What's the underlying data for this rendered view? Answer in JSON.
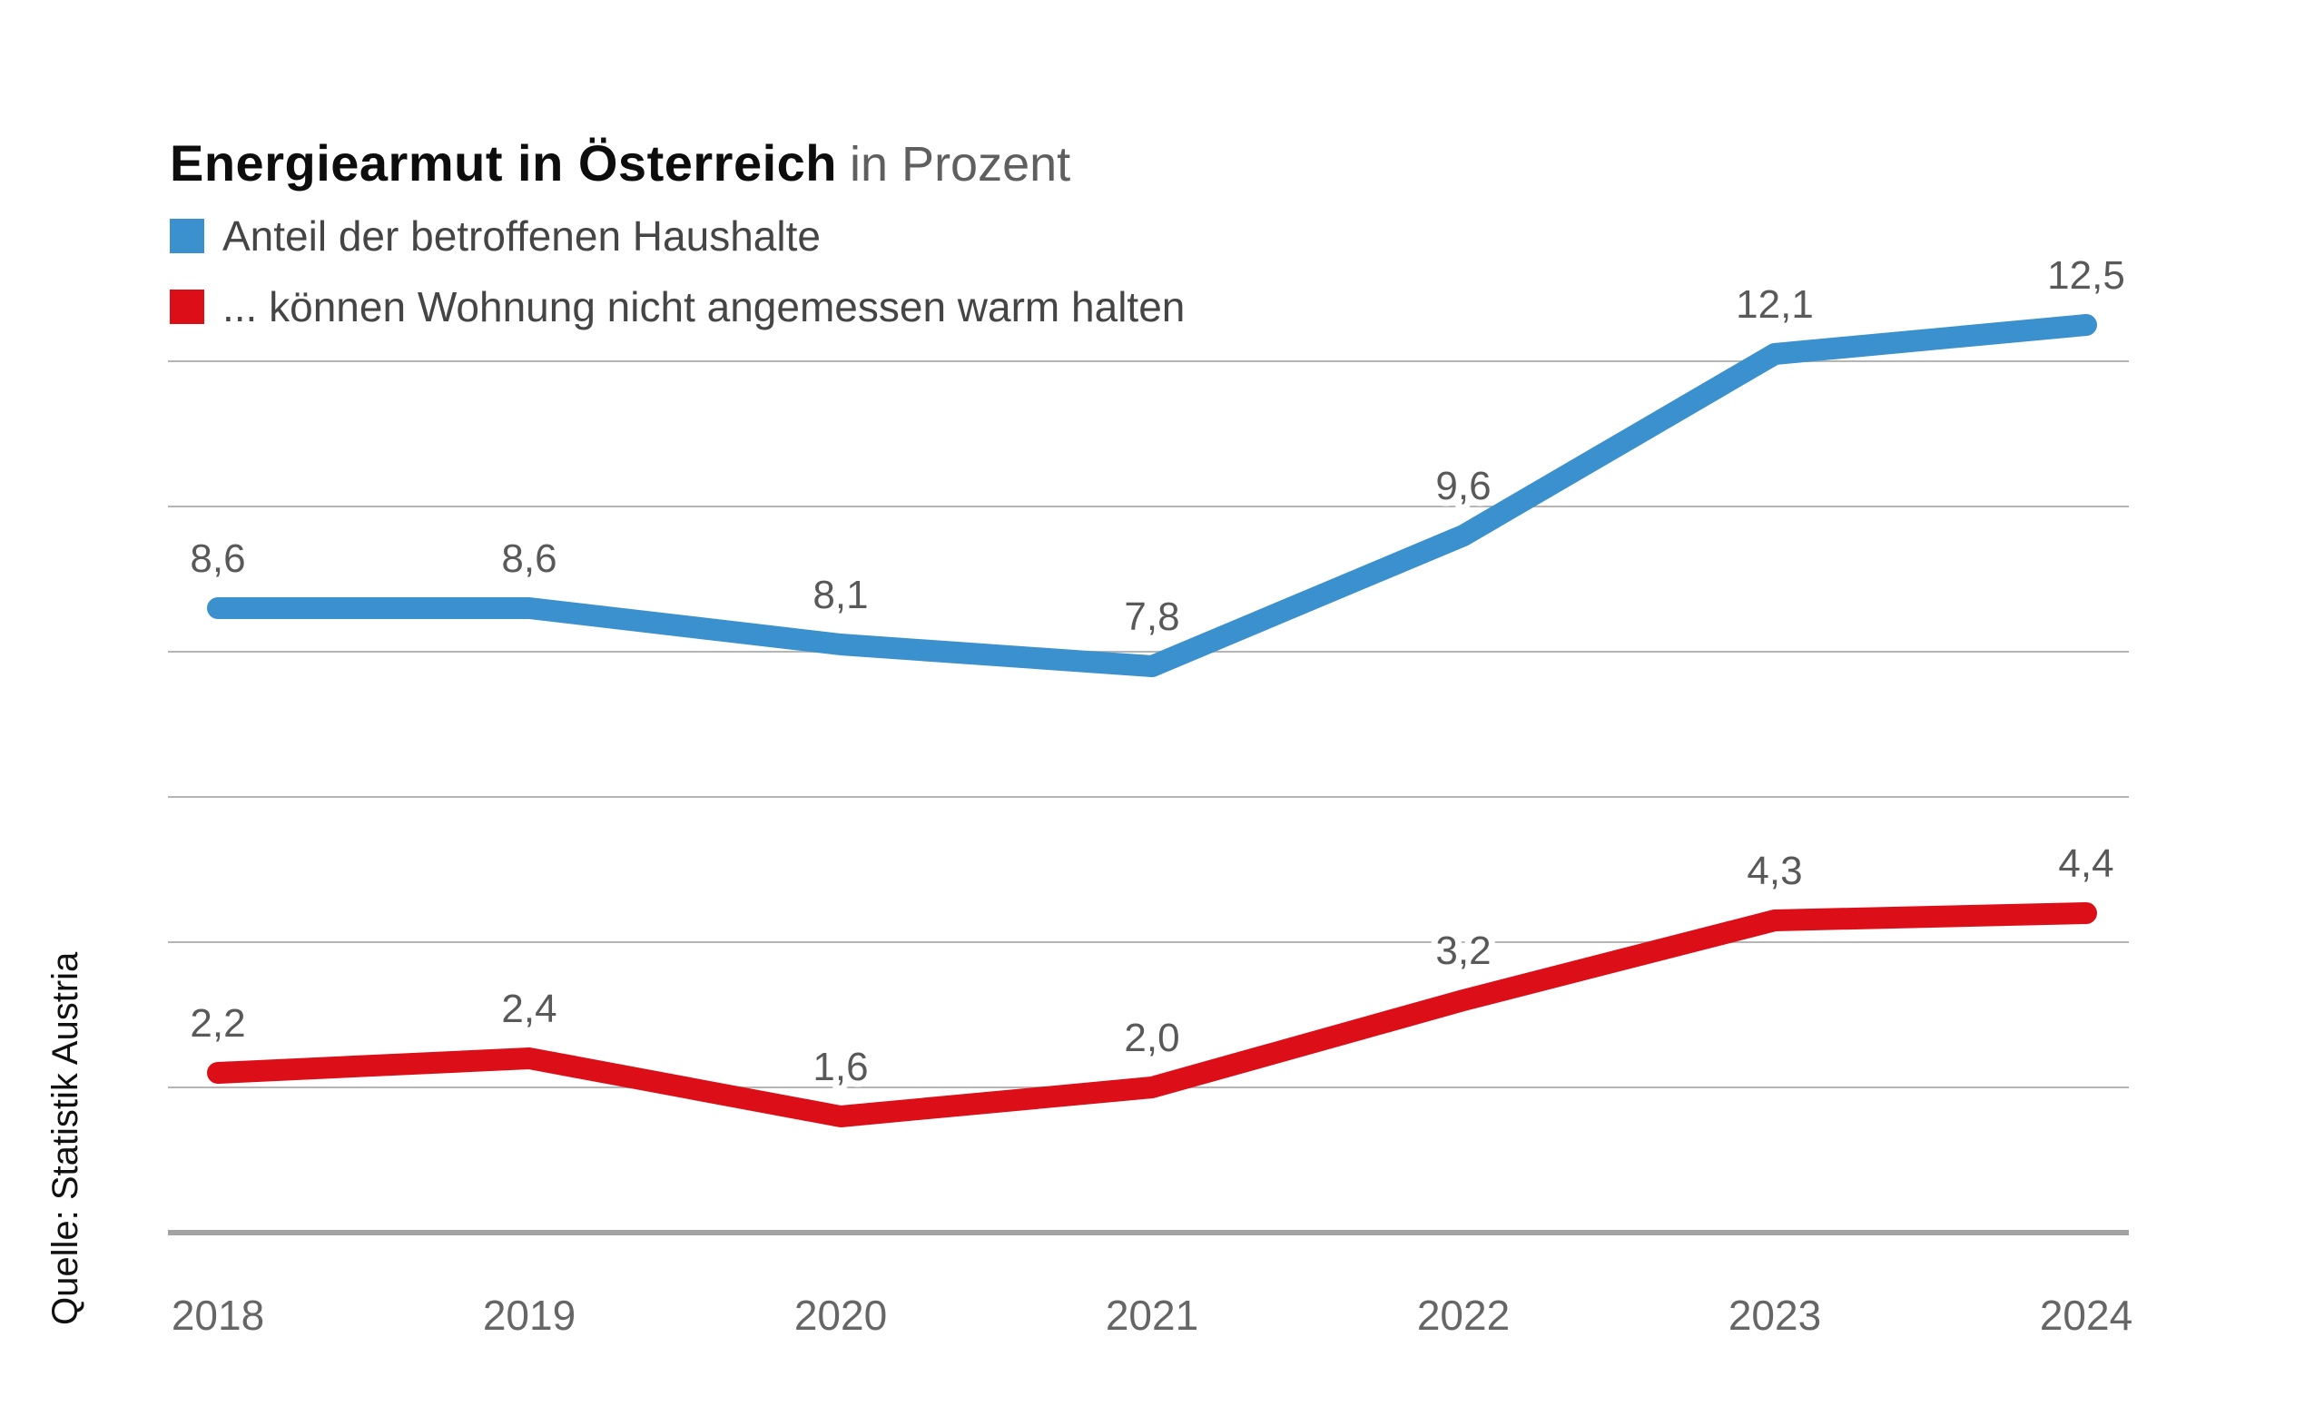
{
  "header": {
    "title": "Energiearmut in Österreich",
    "subtitle": "in Prozent"
  },
  "source": "Quelle: Statistik Austria",
  "chart_data": {
    "type": "line",
    "title": "Energiearmut in Österreich",
    "subtitle": "in Prozent",
    "categories": [
      "2018",
      "2019",
      "2020",
      "2021",
      "2022",
      "2023",
      "2024"
    ],
    "series": [
      {
        "name": "Anteil der betroffenen Haushalte",
        "color": "#3b90ce",
        "values": [
          8.6,
          8.6,
          8.1,
          7.8,
          9.6,
          12.1,
          12.5
        ],
        "labels": [
          "8,6",
          "8,6",
          "8,1",
          "7,8",
          "9,6",
          "12,1",
          "12,5"
        ]
      },
      {
        "name": "... können Wohnung nicht angemessen warm halten",
        "color": "#dc0e18",
        "values": [
          2.2,
          2.4,
          1.6,
          2.0,
          3.2,
          4.3,
          4.4
        ],
        "labels": [
          "2,2",
          "2,4",
          "1,6",
          "2,0",
          "3,2",
          "4,3",
          "4,4"
        ]
      }
    ],
    "ylim": [
      0,
      13
    ],
    "gridline_values": [
      2,
      4,
      6,
      8,
      10,
      12
    ],
    "grid": true,
    "legend_position": "top-left",
    "value_format": "decimal-comma",
    "colors": {
      "gridline": "#b5b5b5",
      "axis": "#a2a2a2",
      "data_label": "#595959",
      "year_label": "#666666",
      "label_halo": "#ffffff"
    }
  }
}
